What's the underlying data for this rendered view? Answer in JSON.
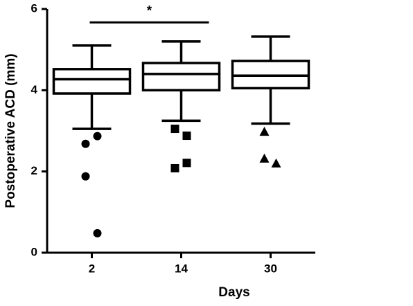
{
  "chart_data": {
    "type": "box",
    "xlabel": "Days",
    "ylabel": "Postoperative ACD (mm)",
    "categories": [
      "2",
      "14",
      "30"
    ],
    "boxes": [
      {
        "whislo": 3.05,
        "q1": 3.92,
        "med": 4.27,
        "q3": 4.52,
        "whishi": 5.1,
        "outliers": [
          2.68,
          2.87,
          1.88,
          0.48
        ],
        "marker": "circle"
      },
      {
        "whislo": 3.25,
        "q1": 4.0,
        "med": 4.4,
        "q3": 4.67,
        "whishi": 5.2,
        "outliers": [
          3.05,
          2.88,
          2.08,
          2.21
        ],
        "marker": "square"
      },
      {
        "whislo": 3.18,
        "q1": 4.05,
        "med": 4.36,
        "q3": 4.72,
        "whishi": 5.32,
        "outliers": [
          2.98,
          2.2,
          2.32
        ],
        "marker": "triangle"
      }
    ],
    "significance": {
      "label": "*",
      "categories": [
        "2",
        "14"
      ],
      "y": 5.67
    },
    "color": "#000000",
    "ylim": [
      0,
      6
    ],
    "yticks": [
      0,
      2,
      4,
      6
    ]
  }
}
